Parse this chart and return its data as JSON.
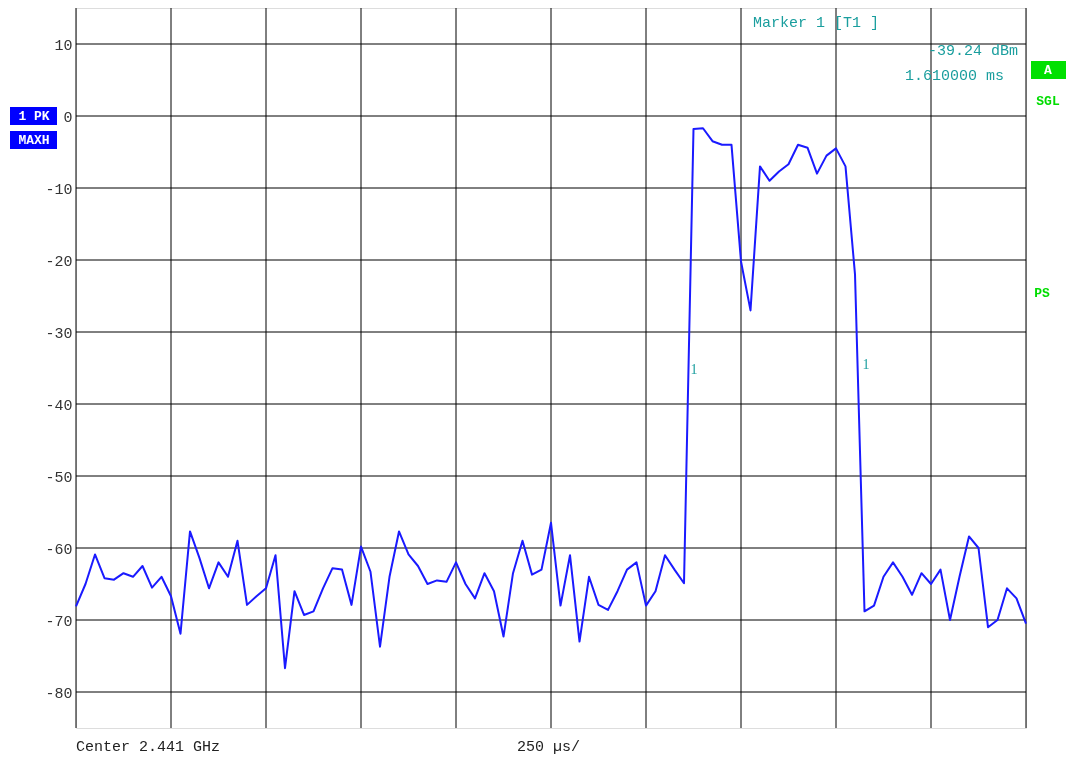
{
  "chart_data": {
    "type": "line",
    "categories": [
      null,
      null,
      null,
      null,
      null,
      null,
      null,
      null,
      null,
      null,
      null,
      null,
      null,
      null,
      null,
      null,
      null,
      null,
      null,
      null,
      null,
      null,
      null,
      null,
      null,
      null,
      null,
      null,
      null,
      null,
      null,
      null,
      null,
      null,
      null,
      null,
      null,
      null,
      null,
      null,
      null,
      null,
      null,
      null,
      null,
      null,
      null,
      null,
      null,
      null,
      null,
      null,
      null,
      null,
      null,
      null,
      null,
      null,
      null,
      null,
      null,
      null,
      null,
      null,
      null,
      null,
      null,
      null,
      null,
      null,
      null,
      null,
      null,
      null,
      null,
      null,
      null,
      null,
      null,
      null,
      null,
      null,
      null,
      null,
      null,
      null,
      null,
      null,
      null,
      null,
      null,
      null,
      null,
      null,
      null,
      null,
      null,
      null,
      null,
      null,
      null
    ],
    "series": [
      {
        "color": "#1a1aff",
        "values": [
          -68.1,
          -65,
          -60.9,
          -64.2,
          -64.4,
          -63.5,
          -64,
          -62.5,
          -65.5,
          -64,
          -66.7,
          -71.9,
          -57.7,
          -61.4,
          -65.6,
          -62,
          -64,
          -59,
          -67.9,
          -66.7,
          -65.6,
          -61,
          -76.7,
          -66,
          -69.3,
          -68.8,
          -65.6,
          -62.8,
          -63,
          -67.9,
          -59.8,
          -63.3,
          -73.7,
          -64,
          -57.7,
          -60.9,
          -62.5,
          -65,
          -64.5,
          -64.7,
          -62,
          -65,
          -67,
          -63.5,
          -66,
          -72.3,
          -63.5,
          -59,
          -63.7,
          -63,
          -56.5,
          -68,
          -61,
          -73,
          -64,
          -67.9,
          -68.6,
          -66,
          -63,
          -62,
          -68,
          -66,
          -61,
          -63,
          -64.9,
          -1.8,
          -1.7,
          -3.5,
          -4,
          -4,
          -20.2,
          -27.0,
          -7,
          -9,
          -7.7,
          -6.7,
          -4,
          -4.4,
          -8,
          -5.5,
          -4.5,
          -7,
          -22,
          -68.8,
          -68,
          -64,
          -62,
          -64,
          -66.5,
          -63.5,
          -65,
          -63,
          -70,
          -64,
          -58.4,
          -60,
          -71,
          -70,
          -65.6,
          -67,
          -70.5
        ]
      }
    ],
    "ylim": [
      -85,
      15
    ],
    "yticks": [
      -80,
      -70,
      -60,
      -50,
      -40,
      -30,
      -20,
      -10,
      0,
      10
    ],
    "grid": true,
    "tick_labels": "y",
    "line_style": "solid",
    "marker": "none",
    "annotations": [
      "1",
      "1",
      "Marker 1 [T1 ]",
      "-39.24 dBm",
      "1.610000 ms",
      "1 PK",
      "MAXH",
      "A",
      "SGL",
      "PS",
      "Center 2.441 GHz",
      "250 µs/"
    ]
  }
}
